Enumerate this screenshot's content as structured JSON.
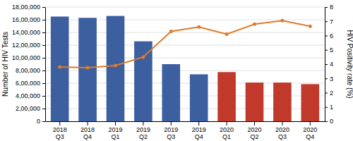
{
  "chart_data": {
    "type": "bar",
    "categories": [
      "2018\nQ3",
      "2018\nQ4",
      "2019\nQ1",
      "2019\nQ2",
      "2019\nQ3",
      "2019\nQ4",
      "2020\nQ1",
      "2020\nQ2",
      "2020\nQ3",
      "2020\nQ4"
    ],
    "series": [
      {
        "type": "bar",
        "colors": [
          "#3c5fa0",
          "#3c5fa0",
          "#3c5fa0",
          "#3c5fa0",
          "#3c5fa0",
          "#3c5fa0",
          "#c0392b",
          "#c0392b",
          "#c0392b",
          "#c0392b"
        ],
        "values": [
          1650000,
          1630000,
          1660000,
          1260000,
          900000,
          740000,
          775000,
          610000,
          610000,
          585000
        ]
      },
      {
        "type": "line",
        "axis": "y2",
        "color": "#e07b2a",
        "marker": "circle",
        "values": [
          3.8,
          3.75,
          3.9,
          4.5,
          6.3,
          6.6,
          6.1,
          6.8,
          7.05,
          6.65
        ]
      }
    ],
    "ylabel": "Number of HIV Tests",
    "y2label": "HIV Positivity rate (%)",
    "ylim": [
      0,
      1800000
    ],
    "yticks": [
      0,
      {
        "value": 200000,
        "label": "2,00,000"
      },
      {
        "value": 400000,
        "label": "4,00,000"
      },
      {
        "value": 600000,
        "label": "6,00,000"
      },
      {
        "value": 800000,
        "label": "8,00,000"
      },
      {
        "value": 1000000,
        "label": "10,00,000"
      },
      {
        "value": 1200000,
        "label": "12,00,000"
      },
      {
        "value": 1400000,
        "label": "14,00,000"
      },
      {
        "value": 1600000,
        "label": "16,00,000"
      },
      {
        "value": 1800000,
        "label": "18,00,000"
      }
    ],
    "y2lim": [
      0,
      8
    ],
    "y2ticks": [
      0,
      1,
      2,
      3,
      4,
      5,
      6,
      7,
      8
    ],
    "grid": true
  }
}
